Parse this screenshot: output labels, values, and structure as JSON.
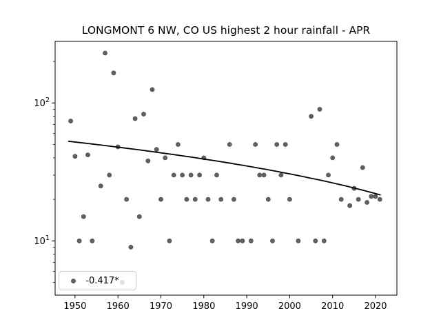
{
  "figure": {
    "background": "#ffffff"
  },
  "chart_data": {
    "type": "scatter",
    "title": "LONGMONT 6 NW, CO US highest 2 hour rainfall - APR",
    "xlabel": "",
    "ylabel": "",
    "x_scale": "linear",
    "y_scale": "log",
    "grid": false,
    "xlim": [
      1945.37,
      2024.97
    ],
    "ylim": [
      4.04,
      279.6
    ],
    "x_ticks": [
      1950,
      1960,
      1970,
      1980,
      1990,
      2000,
      2010,
      2020
    ],
    "x_tick_labels": [
      "1950",
      "1960",
      "1970",
      "1980",
      "1990",
      "2000",
      "2010",
      "2020"
    ],
    "y_major_ticks": [
      10,
      100
    ],
    "y_major_tick_labels": [
      {
        "base": "10",
        "exp": "1"
      },
      {
        "base": "10",
        "exp": "2"
      }
    ],
    "y_minor_ticks": [
      5,
      6,
      7,
      8,
      9,
      20,
      30,
      40,
      50,
      60,
      70,
      80,
      90,
      200
    ],
    "marker_color": "#5f5f5f",
    "marker_edge_color": "#4a4a4a",
    "axis_color": "#000000",
    "legend": {
      "label": "-0.417*",
      "position": "lower left"
    },
    "trend_line": {
      "color": "#000000",
      "start_year": 1948.4,
      "end_year": 2021.2,
      "start_value": 52.8,
      "slope_per_year": -0.43
    },
    "points": [
      [
        1949,
        74
      ],
      [
        1950,
        41
      ],
      [
        1951,
        10
      ],
      [
        1952,
        15
      ],
      [
        1953,
        42
      ],
      [
        1954,
        10
      ],
      [
        1956,
        25
      ],
      [
        1957,
        230
      ],
      [
        1958,
        30
      ],
      [
        1959,
        165
      ],
      [
        1960,
        48
      ],
      [
        1961,
        5
      ],
      [
        1962,
        20
      ],
      [
        1963,
        9
      ],
      [
        1964,
        77
      ],
      [
        1965,
        15
      ],
      [
        1966,
        83
      ],
      [
        1967,
        38
      ],
      [
        1968,
        125
      ],
      [
        1969,
        46
      ],
      [
        1970,
        20
      ],
      [
        1971,
        40
      ],
      [
        1972,
        10
      ],
      [
        1973,
        30
      ],
      [
        1974,
        50
      ],
      [
        1975,
        30
      ],
      [
        1976,
        20
      ],
      [
        1977,
        30
      ],
      [
        1978,
        20
      ],
      [
        1979,
        30
      ],
      [
        1980,
        40
      ],
      [
        1981,
        20
      ],
      [
        1982,
        10
      ],
      [
        1983,
        30
      ],
      [
        1984,
        20
      ],
      [
        1986,
        50
      ],
      [
        1987,
        20
      ],
      [
        1988,
        10
      ],
      [
        1989,
        10
      ],
      [
        1991,
        10
      ],
      [
        1992,
        50
      ],
      [
        1993,
        30
      ],
      [
        1994,
        30
      ],
      [
        1995,
        20
      ],
      [
        1996,
        10
      ],
      [
        1997,
        50
      ],
      [
        1998,
        30
      ],
      [
        1999,
        50
      ],
      [
        2000,
        20
      ],
      [
        2002,
        10
      ],
      [
        2005,
        80
      ],
      [
        2006,
        10
      ],
      [
        2007,
        90
      ],
      [
        2008,
        10
      ],
      [
        2009,
        30
      ],
      [
        2010,
        40
      ],
      [
        2011,
        50
      ],
      [
        2012,
        20
      ],
      [
        2014,
        18
      ],
      [
        2015,
        24
      ],
      [
        2016,
        20
      ],
      [
        2017,
        34
      ],
      [
        2018,
        19
      ],
      [
        2019,
        21
      ],
      [
        2020,
        21
      ],
      [
        2021,
        20
      ]
    ]
  }
}
